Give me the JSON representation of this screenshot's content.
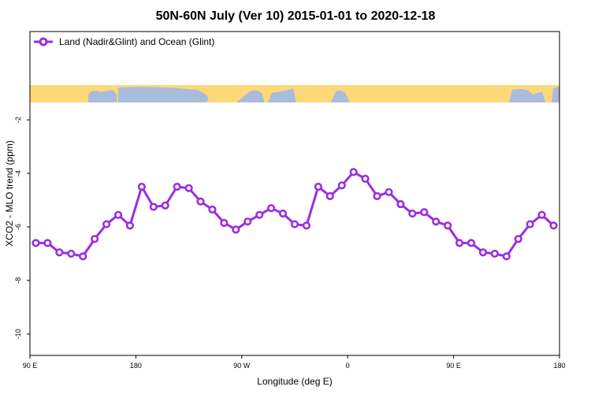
{
  "chart_data": {
    "type": "line",
    "title": "50N-60N July (Ver 10)   2015-01-01 to 2020-12-18",
    "xlabel": "Longitude (deg E)",
    "ylabel": "XCO2 - MLO trend (ppm)",
    "xlim": [
      90,
      540
    ],
    "ylim": [
      -10.8,
      1.3
    ],
    "x_ticks": [
      {
        "value": 90,
        "label": "90 E"
      },
      {
        "value": 180,
        "label": "180"
      },
      {
        "value": 270,
        "label": "90 W"
      },
      {
        "value": 360,
        "label": "0"
      },
      {
        "value": 450,
        "label": "90 E"
      },
      {
        "value": 540,
        "label": "180"
      }
    ],
    "y_ticks": [
      {
        "value": -2,
        "label": "-2"
      },
      {
        "value": -4,
        "label": "-4"
      },
      {
        "value": -6,
        "label": "-6"
      },
      {
        "value": -8,
        "label": "-8"
      },
      {
        "value": -10,
        "label": "-10"
      }
    ],
    "legend_position": "top-left",
    "map_strip_colors": {
      "ocean": "#aabcdc",
      "land": "#fdd878"
    },
    "series": [
      {
        "name": "Land (Nadir&Glint) and Ocean (Glint)",
        "color": "#9b2ee0",
        "x": [
          95,
          105,
          115,
          125,
          135,
          145,
          155,
          165,
          175,
          185,
          195,
          205,
          215,
          225,
          235,
          245,
          255,
          265,
          275,
          285,
          295,
          305,
          315,
          325,
          335,
          345,
          355,
          365,
          375,
          385,
          395,
          405,
          415,
          425,
          435,
          445,
          455,
          465,
          475,
          485,
          495,
          505,
          515,
          525,
          535
        ],
        "values": [
          -6.6,
          -6.6,
          -6.95,
          -7.0,
          -7.1,
          -6.45,
          -5.9,
          -5.55,
          -5.95,
          -4.5,
          -5.25,
          -5.2,
          -4.5,
          -4.55,
          -5.05,
          -5.35,
          -5.85,
          -6.1,
          -5.8,
          -5.55,
          -5.3,
          -5.5,
          -5.9,
          -5.95,
          -4.5,
          -4.85,
          -4.45,
          -3.95,
          -4.2,
          -4.85,
          -4.7,
          -5.15,
          -5.5,
          -5.45,
          -5.8,
          -5.95,
          -6.6,
          -6.6,
          -6.95,
          -7.0,
          -7.1,
          -6.45,
          -5.9,
          -5.55,
          -5.95
        ]
      }
    ]
  }
}
